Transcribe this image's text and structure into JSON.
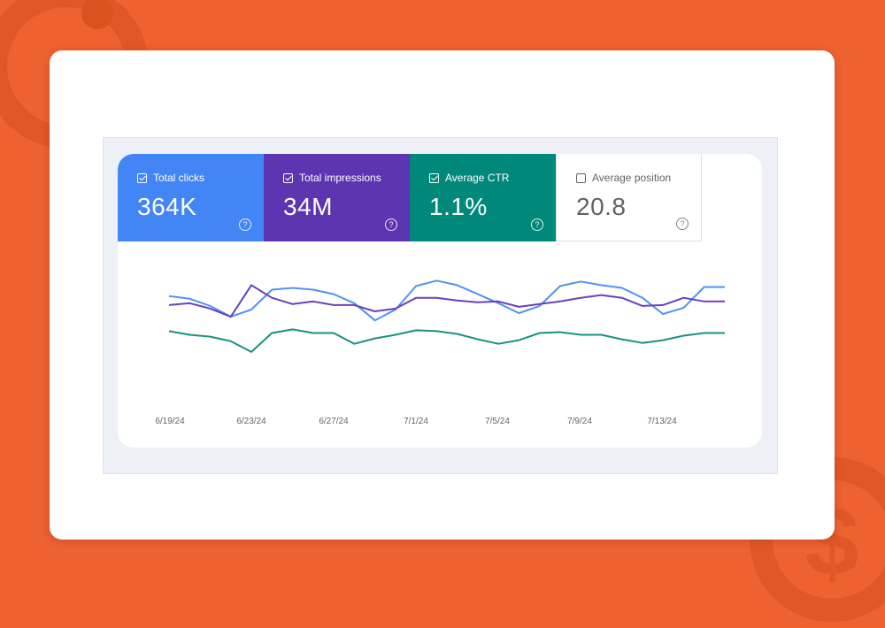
{
  "metrics": [
    {
      "label": "Total clicks",
      "value": "364K",
      "checked": true,
      "color": "#4285f4"
    },
    {
      "label": "Total impressions",
      "value": "34M",
      "checked": true,
      "color": "#5e35b1"
    },
    {
      "label": "Average CTR",
      "value": "1.1%",
      "checked": true,
      "color": "#00897b"
    },
    {
      "label": "Average position",
      "value": "20.8",
      "checked": false,
      "color": "#ffffff"
    }
  ],
  "help_icon": "help-circle-icon",
  "chart_data": {
    "type": "line",
    "x_ticks": [
      "6/19/24",
      "6/23/24",
      "6/27/24",
      "7/1/24",
      "7/5/24",
      "7/9/24",
      "7/13/24"
    ],
    "y_axis_labels": false,
    "grid": false,
    "series": [
      {
        "color": "#4e93f2",
        "values": [
          0.67,
          0.64,
          0.56,
          0.44,
          0.52,
          0.74,
          0.76,
          0.74,
          0.69,
          0.59,
          0.4,
          0.52,
          0.78,
          0.84,
          0.79,
          0.69,
          0.59,
          0.48,
          0.56,
          0.78,
          0.83,
          0.79,
          0.76,
          0.65,
          0.47,
          0.54,
          0.77,
          0.77
        ]
      },
      {
        "color": "#6a3fbd",
        "values": [
          0.57,
          0.59,
          0.53,
          0.44,
          0.79,
          0.65,
          0.58,
          0.61,
          0.57,
          0.57,
          0.5,
          0.53,
          0.65,
          0.65,
          0.62,
          0.6,
          0.61,
          0.55,
          0.58,
          0.61,
          0.65,
          0.68,
          0.65,
          0.56,
          0.57,
          0.65,
          0.61,
          0.61
        ]
      },
      {
        "color": "#18917f",
        "values": [
          0.28,
          0.24,
          0.22,
          0.17,
          0.05,
          0.26,
          0.3,
          0.26,
          0.26,
          0.14,
          0.2,
          0.24,
          0.29,
          0.28,
          0.25,
          0.19,
          0.14,
          0.18,
          0.26,
          0.27,
          0.24,
          0.24,
          0.19,
          0.15,
          0.18,
          0.23,
          0.26,
          0.26
        ]
      }
    ]
  }
}
